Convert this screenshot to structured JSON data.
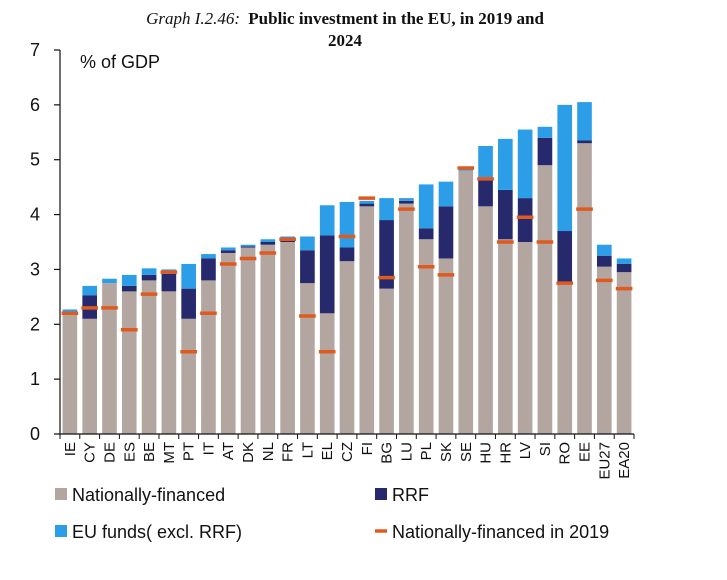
{
  "chart_data": {
    "type": "bar",
    "stacked": true,
    "title_prefix": "Graph I.2.46:",
    "title_line1": "Public investment in the EU, in 2019 and",
    "title_line2": "2024",
    "unit_label": "% of GDP",
    "ylim": [
      0,
      7
    ],
    "yticks": [
      "0",
      "1",
      "2",
      "3",
      "4",
      "5",
      "6",
      "7"
    ],
    "grid": false,
    "legend_position": "bottom",
    "categories": [
      "IE",
      "CY",
      "DE",
      "ES",
      "BE",
      "MT",
      "PT",
      "IT",
      "AT",
      "DK",
      "NL",
      "FR",
      "LT",
      "EL",
      "CZ",
      "FI",
      "BG",
      "LU",
      "PL",
      "SK",
      "SE",
      "HU",
      "HR",
      "LV",
      "SI",
      "RO",
      "EE",
      "EU27",
      "EA20"
    ],
    "series": [
      {
        "name": "Nationally-financed",
        "kind": "bar",
        "color": "#b3a6a1",
        "values": [
          2.2,
          2.1,
          2.75,
          2.6,
          2.8,
          2.6,
          2.1,
          2.8,
          3.3,
          3.4,
          3.45,
          3.5,
          2.75,
          2.2,
          3.15,
          4.15,
          2.65,
          4.2,
          3.55,
          3.2,
          4.8,
          4.15,
          3.55,
          3.5,
          4.9,
          2.75,
          5.3,
          3.05,
          2.95
        ]
      },
      {
        "name": "RRF",
        "kind": "bar",
        "color": "#262a6c",
        "values": [
          0.02,
          0.43,
          0.0,
          0.1,
          0.1,
          0.32,
          0.55,
          0.4,
          0.05,
          0.02,
          0.05,
          0.07,
          0.6,
          1.42,
          0.25,
          0.05,
          1.25,
          0.05,
          0.2,
          0.95,
          0.0,
          0.5,
          0.9,
          0.8,
          0.5,
          0.95,
          0.05,
          0.2,
          0.15
        ]
      },
      {
        "name": "EU funds( excl. RRF)",
        "kind": "bar",
        "color": "#2c9ee8",
        "values": [
          0.05,
          0.17,
          0.08,
          0.2,
          0.12,
          0.08,
          0.45,
          0.08,
          0.05,
          0.03,
          0.05,
          0.03,
          0.25,
          0.55,
          0.83,
          0.05,
          0.4,
          0.05,
          0.8,
          0.45,
          0.05,
          0.6,
          0.93,
          1.25,
          0.2,
          2.3,
          0.7,
          0.2,
          0.1
        ]
      },
      {
        "name": "Nationally-financed in 2019",
        "kind": "marker",
        "color": "#e05a1d",
        "values": [
          2.2,
          2.3,
          2.3,
          1.9,
          2.55,
          2.95,
          1.5,
          2.2,
          3.1,
          3.2,
          3.3,
          3.55,
          2.15,
          1.5,
          3.6,
          4.3,
          2.85,
          4.1,
          3.05,
          2.9,
          4.85,
          4.65,
          3.5,
          3.95,
          3.5,
          2.75,
          4.1,
          2.8,
          2.65
        ]
      }
    ]
  }
}
